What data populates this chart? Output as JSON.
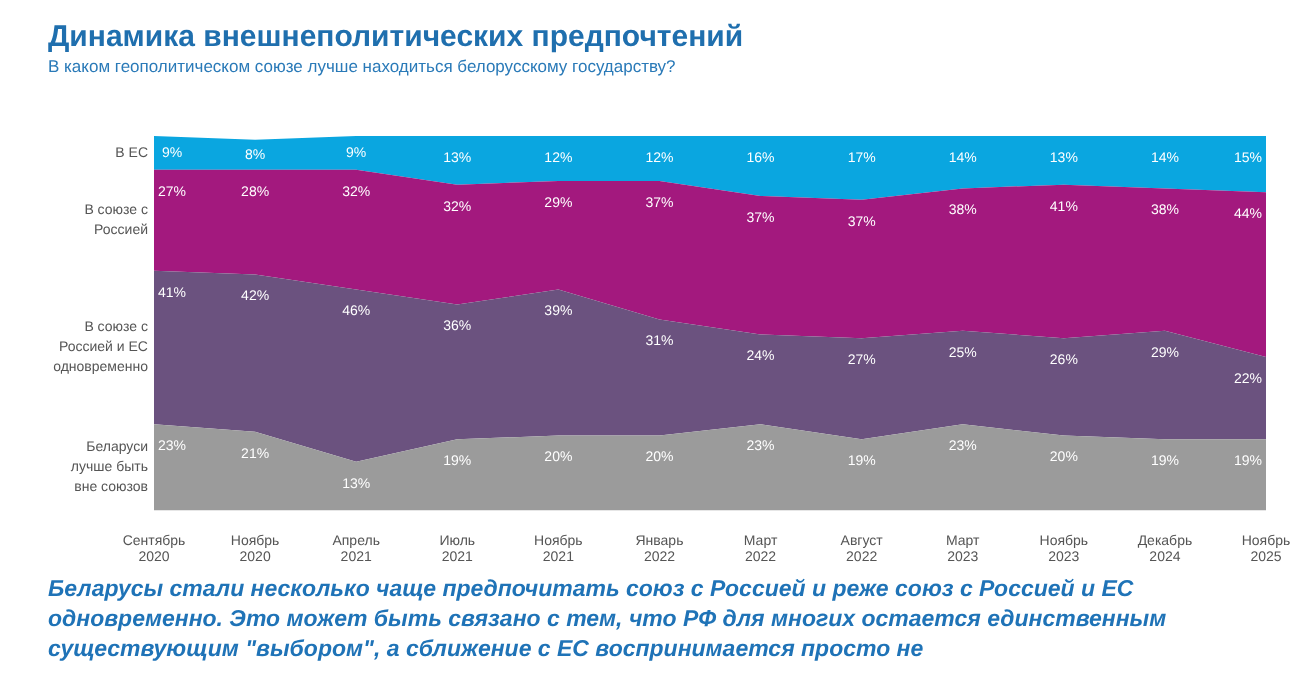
{
  "chart_data": {
    "type": "area",
    "stacked": true,
    "title": "Динамика внешнеполитических предпочтений",
    "subtitle": "В каком геополитическом союзе лучше находиться белорусскому государству?",
    "categories": [
      "Сентябрь 2020",
      "Ноябрь 2020",
      "Апрель 2021",
      "Июль 2021",
      "Ноябрь 2021",
      "Январь 2022",
      "Март 2022",
      "Август 2022",
      "Март 2023",
      "Ноябрь 2023",
      "Декабрь 2024",
      "Ноябрь 2025"
    ],
    "tick_labels": "x",
    "series": [
      {
        "name": "Беларуси лучше быть вне союзов",
        "color": "#9b9b9b",
        "values": [
          23,
          21,
          13,
          19,
          20,
          20,
          23,
          19,
          23,
          20,
          19,
          19
        ],
        "value_labels": [
          "23%",
          "21%",
          "13%",
          "19%",
          "20%",
          "20%",
          "23%",
          "19%",
          "23%",
          "20%",
          "19%",
          "19%"
        ]
      },
      {
        "name": "В союзе с Россией и ЕС одновременно",
        "color": "#6b527f",
        "values": [
          41,
          42,
          46,
          36,
          39,
          31,
          24,
          27,
          25,
          26,
          29,
          22
        ],
        "value_labels": [
          "41%",
          "42%",
          "46%",
          "36%",
          "39%",
          "31%",
          "24%",
          "27%",
          "25%",
          "26%",
          "29%",
          "22%"
        ]
      },
      {
        "name": "В союзе с Россией",
        "color": "#a3197e",
        "values": [
          27,
          28,
          32,
          32,
          29,
          37,
          37,
          37,
          38,
          41,
          38,
          44
        ],
        "value_labels": [
          "27%",
          "28%",
          "32%",
          "32%",
          "29%",
          "37%",
          "37%",
          "37%",
          "38%",
          "41%",
          "38%",
          "44%"
        ]
      },
      {
        "name": "В ЕС",
        "color": "#0aa6e0",
        "values": [
          9,
          8,
          9,
          13,
          12,
          12,
          16,
          17,
          14,
          13,
          14,
          15
        ],
        "value_labels": [
          "9%",
          "8%",
          "9%",
          "13%",
          "12%",
          "12%",
          "16%",
          "17%",
          "14%",
          "13%",
          "14%",
          "15%"
        ]
      }
    ],
    "annotations": [
      "Беларусы стали несколько чаще предпочитать союз с Россией и реже союз с Россией и ЕС одновременно. Это может быть связано с тем, что РФ для многих остается единственным существующим \"выбором\", а сближение с ЕС воспринимается просто не"
    ]
  }
}
